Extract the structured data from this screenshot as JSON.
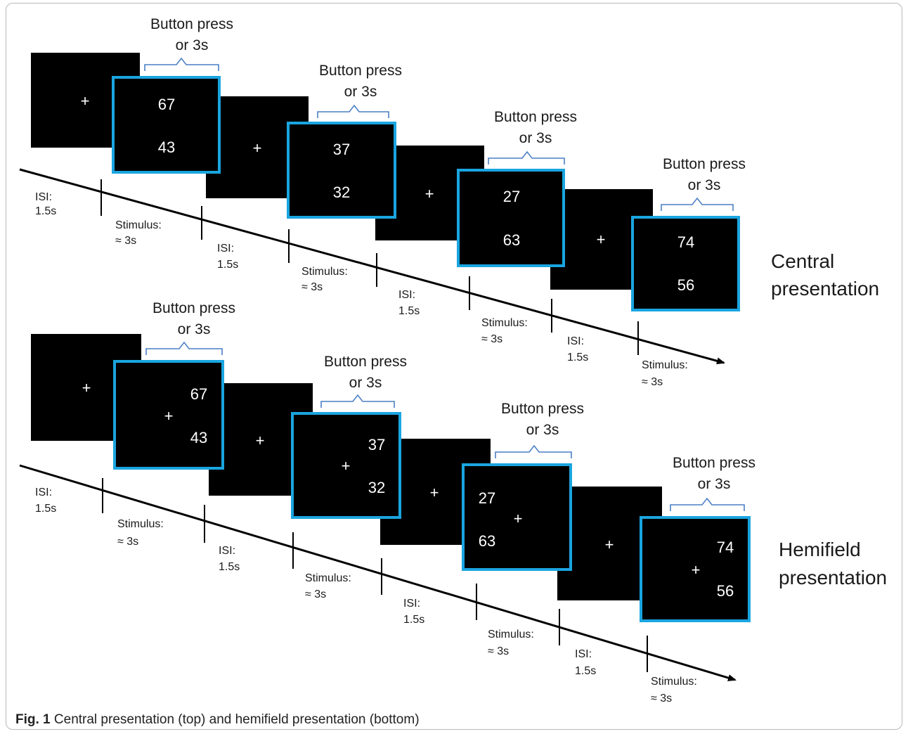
{
  "panels": [
    {
      "id": "central",
      "label_lines": [
        "Central",
        "presentation"
      ],
      "trials": [
        {
          "top": "67",
          "bottom": "43"
        },
        {
          "top": "37",
          "bottom": "32"
        },
        {
          "top": "27",
          "bottom": "63"
        },
        {
          "top": "74",
          "bottom": "56"
        }
      ]
    },
    {
      "id": "hemifield",
      "label_lines": [
        "Hemifield",
        "presentation"
      ],
      "trials": [
        {
          "top": "67",
          "bottom": "43"
        },
        {
          "top": "37",
          "bottom": "32"
        },
        {
          "top": "27",
          "bottom": "63"
        },
        {
          "top": "74",
          "bottom": "56"
        }
      ]
    }
  ],
  "fixation_symbol": "+",
  "response_label": [
    "Button press",
    "or 3s"
  ],
  "isi_label": [
    "ISI:",
    "1.5s"
  ],
  "stimulus_label": [
    "Stimulus:",
    "≈ 3s"
  ],
  "caption": {
    "bold": "Fig. 1",
    "text": " Central presentation (top) and hemifield presentation (bottom)"
  },
  "colors": {
    "screen": "#000000",
    "stimulus_border": "#1aa5e0",
    "brace": "#4a7fc4",
    "timeline": "#000000"
  }
}
